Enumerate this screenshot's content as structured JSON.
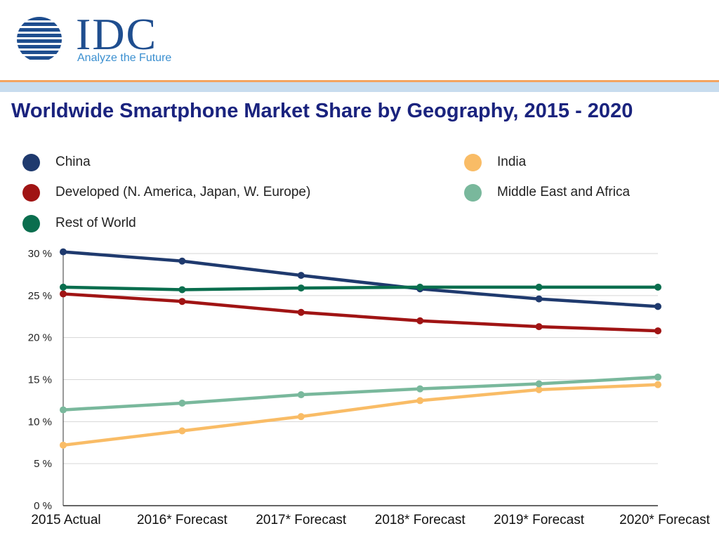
{
  "logo": {
    "name": "IDC",
    "tagline": "Analyze the Future"
  },
  "chart_data": {
    "type": "line",
    "title": "Worldwide Smartphone Market Share by Geography, 2015 - 2020",
    "xlabel": "",
    "ylabel": "",
    "categories": [
      "2015 Actual",
      "2016* Forecast",
      "2017* Forecast",
      "2018* Forecast",
      "2019* Forecast",
      "2020* Forecast"
    ],
    "y_ticks": [
      "0 %",
      "5 %",
      "10 %",
      "15 %",
      "20 %",
      "25 %",
      "30 %"
    ],
    "ylim": [
      0,
      30
    ],
    "grid": true,
    "legend_position": "top",
    "series": [
      {
        "name": "China",
        "color": "#1f3a6e",
        "values": [
          30.2,
          29.1,
          27.4,
          25.8,
          24.6,
          23.7
        ]
      },
      {
        "name": "Developed (N. America, Japan, W. Europe)",
        "color": "#a01414",
        "values": [
          25.2,
          24.3,
          23.0,
          22.0,
          21.3,
          20.8
        ]
      },
      {
        "name": "Rest of World",
        "color": "#0a6e4e",
        "values": [
          26.0,
          25.7,
          25.9,
          26.0,
          26.0,
          26.0
        ]
      },
      {
        "name": "India",
        "color": "#f9bc66",
        "values": [
          7.2,
          8.9,
          10.6,
          12.5,
          13.8,
          14.4
        ]
      },
      {
        "name": "Middle East and Africa",
        "color": "#79b89c",
        "values": [
          11.4,
          12.2,
          13.2,
          13.9,
          14.5,
          15.3
        ]
      }
    ]
  }
}
